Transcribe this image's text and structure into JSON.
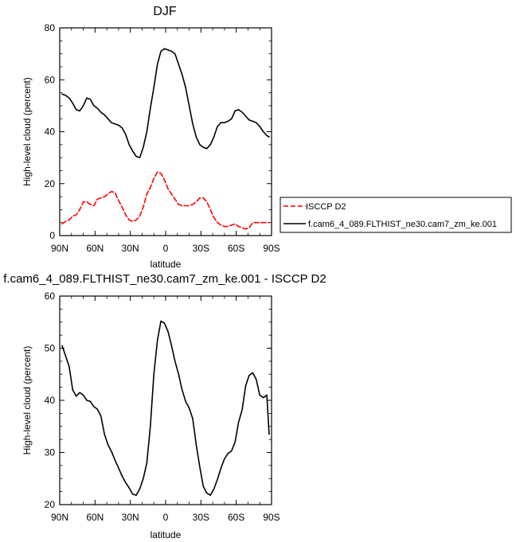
{
  "colors": {
    "model": "#000000",
    "obs": "#ff0000",
    "axis": "#000000",
    "background": "#ffffff"
  },
  "legend": {
    "position": "right of top panel",
    "entries": [
      {
        "label": "ISCCP D2",
        "style": "dashed",
        "color": "#ff0000"
      },
      {
        "label": "f.cam6_4_089.FLTHIST_ne30.cam7_zm_ke.001",
        "style": "solid",
        "color": "#000000"
      }
    ]
  },
  "chart_data": [
    {
      "type": "line",
      "title": "DJF",
      "xlabel": "latitude",
      "ylabel": "High-level cloud (percent)",
      "xlim": [
        90,
        -90
      ],
      "ylim": [
        0,
        80
      ],
      "xticks": [
        90,
        60,
        30,
        0,
        -30,
        -60,
        -90
      ],
      "xticklabels": [
        "90N",
        "60N",
        "30N",
        "0",
        "30S",
        "60S",
        "90S"
      ],
      "yticks": [
        0,
        20,
        40,
        60,
        80
      ],
      "yticklabels": [
        "0",
        "20",
        "40",
        "60",
        "80"
      ],
      "grid": false,
      "series": [
        {
          "name": "f.cam6_4_089.FLTHIST_ne30.cam7_zm_ke.001",
          "color": "#000000",
          "dash": "solid",
          "x": [
            88,
            85,
            82,
            79,
            76,
            73,
            70,
            67,
            64,
            61,
            58,
            55,
            52,
            49,
            46,
            43,
            40,
            37,
            34,
            31,
            28,
            25,
            22,
            19,
            16,
            13,
            10,
            7,
            4,
            1,
            -2,
            -5,
            -8,
            -11,
            -14,
            -17,
            -20,
            -23,
            -26,
            -29,
            -32,
            -35,
            -38,
            -41,
            -44,
            -47,
            -50,
            -53,
            -56,
            -59,
            -62,
            -65,
            -68,
            -71,
            -74,
            -77,
            -80,
            -83,
            -86,
            -88
          ],
          "y": [
            54.5,
            54,
            53,
            51,
            48.5,
            48,
            50,
            53,
            52.5,
            50,
            49,
            47.5,
            46.5,
            45,
            43.5,
            43,
            42.5,
            41.5,
            39,
            35,
            32.5,
            30.5,
            30,
            34,
            40,
            49,
            57,
            66,
            71,
            72,
            71.5,
            71,
            70,
            66,
            62,
            57,
            50,
            43,
            38,
            35,
            34,
            33.5,
            35,
            38,
            42,
            43.5,
            43.5,
            44,
            45,
            48,
            48.5,
            47.5,
            46,
            44.5,
            44,
            43.5,
            42,
            40,
            38.5,
            38
          ]
        },
        {
          "name": "ISCCP D2",
          "color": "#ff0000",
          "dash": "dashed",
          "x": [
            88,
            85,
            82,
            79,
            76,
            73,
            70,
            67,
            64,
            61,
            58,
            55,
            52,
            49,
            46,
            43,
            40,
            37,
            34,
            31,
            28,
            25,
            22,
            19,
            16,
            13,
            10,
            7,
            4,
            1,
            -2,
            -5,
            -8,
            -11,
            -14,
            -17,
            -20,
            -23,
            -26,
            -29,
            -32,
            -35,
            -38,
            -41,
            -44,
            -47,
            -50,
            -53,
            -56,
            -59,
            -62,
            -65,
            -68,
            -71,
            -74,
            -77,
            -80,
            -83,
            -86,
            -88
          ],
          "y": [
            4.5,
            5.5,
            6,
            7.5,
            8,
            10,
            13,
            13,
            12,
            11.5,
            14,
            14.5,
            15,
            16,
            17,
            16.5,
            13.5,
            11,
            8,
            6,
            5.5,
            6,
            7.5,
            11,
            16,
            18.5,
            22,
            24.5,
            24,
            21.5,
            18,
            16,
            14,
            12,
            11.5,
            11.5,
            11.5,
            12,
            13,
            14.5,
            14.5,
            13,
            10,
            7,
            5,
            4,
            3.5,
            3.5,
            4,
            4.5,
            3.5,
            3,
            2.5,
            3,
            5,
            5,
            5,
            5,
            5,
            5
          ]
        }
      ]
    },
    {
      "type": "line",
      "title": "f.cam6_4_089.FLTHIST_ne30.cam7_zm_ke.001 - ISCCP D2",
      "xlabel": "latitude",
      "ylabel": "High-level cloud (percent)",
      "xlim": [
        90,
        -90
      ],
      "ylim": [
        20,
        60
      ],
      "xticks": [
        90,
        60,
        30,
        0,
        -30,
        -60,
        -90
      ],
      "xticklabels": [
        "90N",
        "60N",
        "30N",
        "0",
        "30S",
        "60S",
        "90S"
      ],
      "yticks": [
        20,
        30,
        40,
        50,
        60
      ],
      "yticklabels": [
        "20",
        "30",
        "40",
        "50",
        "60"
      ],
      "grid": false,
      "series": [
        {
          "color": "#000000",
          "dash": "solid",
          "x": [
            88,
            85,
            82,
            79,
            76,
            73,
            70,
            67,
            64,
            61,
            58,
            55,
            52,
            49,
            46,
            43,
            40,
            37,
            34,
            31,
            28,
            25,
            22,
            19,
            16,
            13,
            10,
            7,
            4,
            1,
            -2,
            -5,
            -8,
            -11,
            -14,
            -17,
            -20,
            -23,
            -26,
            -29,
            -32,
            -35,
            -38,
            -41,
            -44,
            -47,
            -50,
            -53,
            -56,
            -59,
            -62,
            -65,
            -68,
            -71,
            -74,
            -77,
            -80,
            -83,
            -86,
            -88
          ],
          "y": [
            50.5,
            48.5,
            46.5,
            42,
            40.8,
            41.5,
            41,
            40,
            39.8,
            38.8,
            38.3,
            37,
            33.5,
            31.5,
            30.2,
            28.5,
            27,
            25.5,
            24.2,
            23.2,
            22,
            21.8,
            23,
            25,
            28,
            35,
            45,
            51.5,
            55.2,
            54.8,
            53.2,
            50.5,
            47.5,
            45,
            42,
            39.8,
            38.5,
            36.5,
            31.5,
            27.2,
            23.5,
            22.2,
            21.8,
            23,
            24.8,
            27,
            28.8,
            29.8,
            30.3,
            32,
            35.8,
            38.2,
            42.8,
            44.8,
            45.3,
            44,
            41,
            40.5,
            41,
            33.5
          ]
        }
      ]
    }
  ]
}
